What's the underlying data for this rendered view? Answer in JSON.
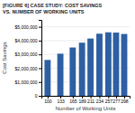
{
  "chart_data": {
    "type": "bar",
    "title": "[FIGURE 6] CASE STUDY: COST SAVINGS\nVS. NUMBER OF WORKING UNITS",
    "x_label": "Number of Working Units",
    "y_label": "Cost Savings",
    "x": [
      100,
      133,
      165,
      189,
      211,
      234,
      257,
      277,
      298
    ],
    "values": [
      2600000,
      3050000,
      3500000,
      3850000,
      4150000,
      4500000,
      4600000,
      4580000,
      4480000
    ],
    "color": "#2E5FA3",
    "xlim": [
      84,
      312
    ],
    "xticks": [
      100,
      133,
      165,
      189,
      211,
      234,
      257,
      277,
      298
    ],
    "ylim": [
      0,
      5500000
    ],
    "yticks": [
      0,
      {
        "value": 1000000,
        "label": "$1,000,000"
      },
      {
        "value": 2000000,
        "label": "$2,000,000"
      },
      {
        "value": 3000000,
        "label": "$3,000,000"
      },
      {
        "value": 4000000,
        "label": "$4,000,000"
      },
      {
        "value": 5000000,
        "label": "$5,000,000"
      }
    ],
    "grid": true
  }
}
